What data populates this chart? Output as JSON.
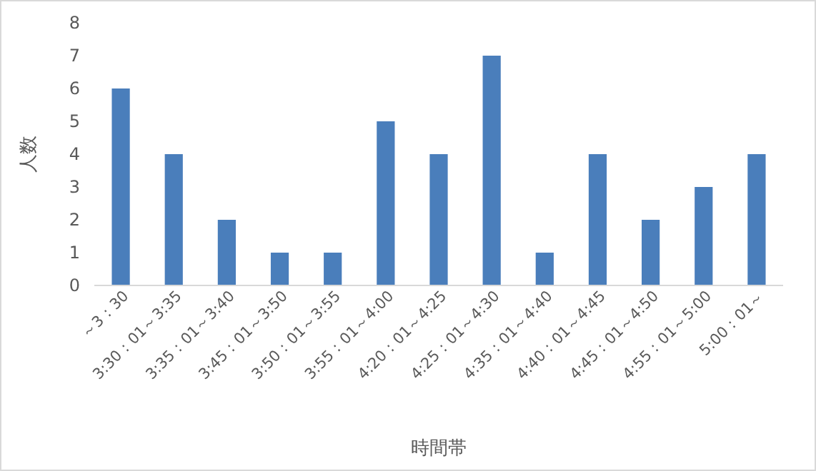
{
  "chart_data": {
    "type": "bar",
    "xlabel": "時間帯",
    "ylabel": "人数",
    "categories": [
      "～3：30",
      "3:30：01～3:35",
      "3:35：01～3:40",
      "3:45：01～3:50",
      "3:50：01～3:55",
      "3:55：01～4:00",
      "4:20：01～4:25",
      "4:25：01～4:30",
      "4:35：01～4:40",
      "4:40：01～4:45",
      "4:45：01～4:50",
      "4:55：01～5:00",
      "5:00：01～"
    ],
    "values": [
      6,
      4,
      2,
      1,
      1,
      5,
      4,
      7,
      1,
      4,
      2,
      3,
      4
    ],
    "color": "#4a7ebb",
    "ylim": [
      0,
      8
    ],
    "yticks": [
      0,
      1,
      2,
      3,
      4,
      5,
      6,
      7,
      8
    ],
    "grid": false
  }
}
